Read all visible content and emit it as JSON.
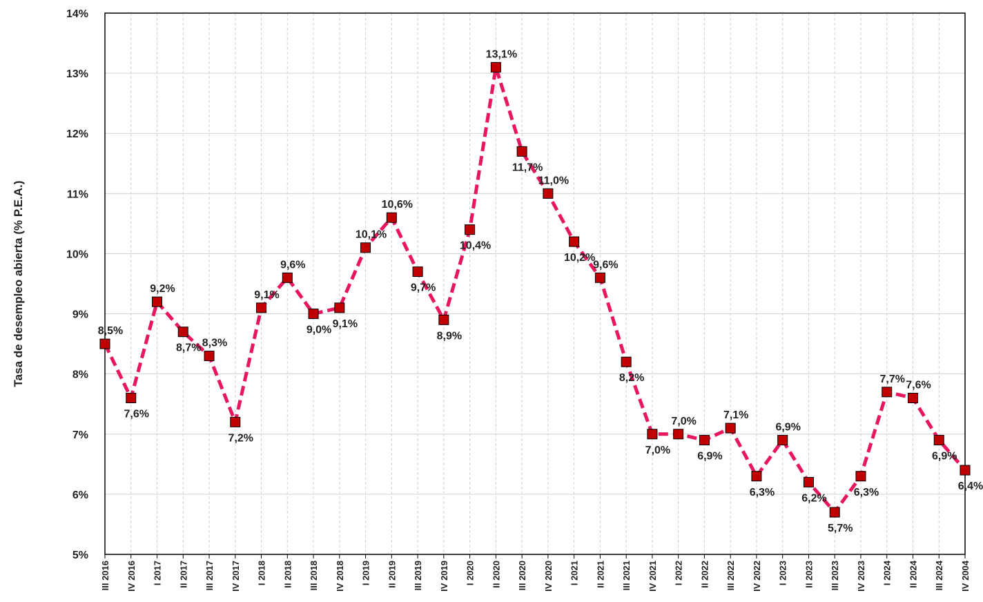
{
  "chart_data": {
    "type": "line",
    "y_axis_label": "Tasa de desempleo abierta (% P.E.A.)",
    "categories": [
      "III 2016",
      "IV 2016",
      "I 2017",
      "II 2017",
      "III 2017",
      "IV 2017",
      "I 2018",
      "II 2018",
      "III 2018",
      "IV 2018",
      "I 2019",
      "II 2019",
      "III 2019",
      "IV 2019",
      "I 2020",
      "II 2020",
      "III 2020",
      "IV 2020",
      "I 2021",
      "II 2021",
      "III 2021",
      "IV 2021",
      "I 2022",
      "II 2022",
      "III 2022",
      "IV 2022",
      "I 2023",
      "II 2023",
      "III 2023",
      "IV 2023",
      "I 2024",
      "II 2024",
      "III 2024",
      "IV 2004"
    ],
    "series": [
      {
        "color": "#e8175d",
        "marker_color": "#c00000",
        "values": [
          8.5,
          7.6,
          9.2,
          8.7,
          8.3,
          7.2,
          9.1,
          9.6,
          9.0,
          9.1,
          10.1,
          10.6,
          9.7,
          8.9,
          10.4,
          13.1,
          11.7,
          11.0,
          10.2,
          9.6,
          8.2,
          7.0,
          7.0,
          6.9,
          7.1,
          6.3,
          6.9,
          6.2,
          5.7,
          6.3,
          7.7,
          7.6,
          6.9,
          6.4
        ],
        "value_labels": [
          "8,5%",
          "7,6%",
          "9,2%",
          "8,7%",
          "8,3%",
          "7,2%",
          "9,1%",
          "9,6%",
          "9,0%",
          "9,1%",
          "10,1%",
          "10,6%",
          "9,7%",
          "8,9%",
          "10,4%",
          "13,1%",
          "11,7%",
          "11,0%",
          "10,2%",
          "9,6%",
          "8,2%",
          "7,0%",
          "7,0%",
          "6,9%",
          "7,1%",
          "6,3%",
          "6,9%",
          "6,2%",
          "5,7%",
          "6,3%",
          "7,7%",
          "7,6%",
          "6,9%",
          "6,4%"
        ]
      }
    ],
    "ylim": [
      5,
      14
    ],
    "yticks": [
      {
        "value": 5,
        "label": "5%"
      },
      {
        "value": 6,
        "label": "6%"
      },
      {
        "value": 7,
        "label": "7%"
      },
      {
        "value": 8,
        "label": "8%"
      },
      {
        "value": 9,
        "label": "9%"
      },
      {
        "value": 10,
        "label": "10%"
      },
      {
        "value": 11,
        "label": "11%"
      },
      {
        "value": 12,
        "label": "12%"
      },
      {
        "value": 13,
        "label": "13%"
      },
      {
        "value": 14,
        "label": "14%"
      }
    ],
    "grid": true
  }
}
